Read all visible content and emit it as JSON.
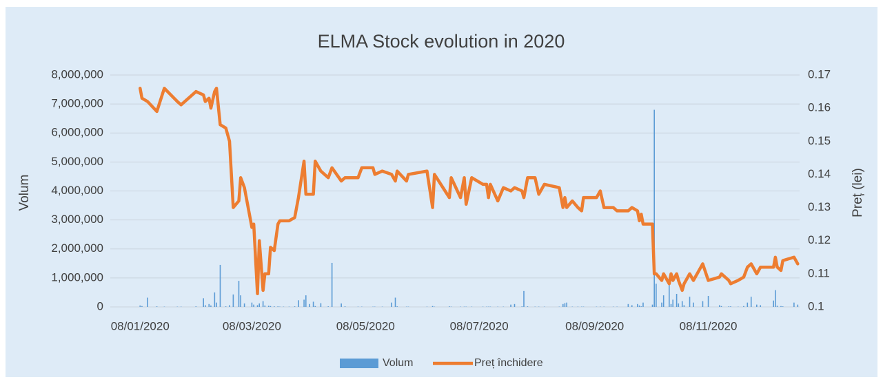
{
  "chart_data": {
    "type": "bar-line",
    "title": "ELMA Stock evolution in 2020",
    "y_label": "Volum",
    "y2_label": "Preț (lei)",
    "x": [
      "08/01/2020",
      "09/01/2020",
      "12/01/2020",
      "17/01/2020",
      "21/01/2020",
      "28/01/2020",
      "30/01/2020",
      "07/02/2020",
      "11/02/2020",
      "12/02/2020",
      "14/02/2020",
      "15/02/2020",
      "17/02/2020",
      "18/02/2020",
      "20/02/2020",
      "23/02/2020",
      "25/02/2020",
      "27/02/2020",
      "01/03/2020",
      "02/03/2020",
      "04/03/2020",
      "08/03/2020",
      "09/03/2020",
      "11/03/2020",
      "12/03/2020",
      "14/03/2020",
      "15/03/2020",
      "17/03/2020",
      "18/03/2020",
      "20/03/2020",
      "22/03/2020",
      "23/03/2020",
      "25/03/2020",
      "28/03/2020",
      "31/03/2020",
      "02/04/2020",
      "05/04/2020",
      "06/04/2020",
      "08/04/2020",
      "10/04/2020",
      "11/04/2020",
      "14/04/2020",
      "18/04/2020",
      "20/04/2020",
      "25/04/2020",
      "27/04/2020",
      "04/05/2020",
      "06/05/2020",
      "12/05/2020",
      "13/05/2020",
      "17/05/2020",
      "22/05/2020",
      "24/05/2020",
      "25/05/2020",
      "30/05/2020",
      "31/05/2020",
      "10/06/2020",
      "13/06/2020",
      "14/06/2020",
      "22/06/2020",
      "23/06/2020",
      "28/06/2020",
      "30/06/2020",
      "01/07/2020",
      "04/07/2020",
      "10/07/2020",
      "12/07/2020",
      "13/07/2020",
      "14/07/2020",
      "18/07/2020",
      "21/07/2020",
      "25/07/2020",
      "27/07/2020",
      "31/07/2020",
      "01/08/2020",
      "03/08/2020",
      "07/08/2020",
      "09/08/2020",
      "12/08/2020",
      "20/08/2020",
      "22/08/2020",
      "23/08/2020",
      "24/08/2020",
      "27/08/2020",
      "30/08/2020",
      "01/09/2020",
      "02/09/2020",
      "09/09/2020",
      "11/09/2020",
      "13/09/2020",
      "18/09/2020",
      "20/09/2020",
      "26/09/2020",
      "28/09/2020",
      "01/10/2020",
      "02/10/2020",
      "03/10/2020",
      "04/10/2020",
      "09/10/2020",
      "10/10/2020",
      "11/10/2020",
      "14/10/2020",
      "15/10/2020",
      "18/10/2020",
      "19/10/2020",
      "20/10/2020",
      "22/10/2020",
      "23/10/2020",
      "25/10/2020",
      "26/10/2020",
      "29/10/2020",
      "31/10/2020",
      "05/11/2020",
      "08/11/2020",
      "14/11/2020",
      "15/11/2020",
      "19/11/2020",
      "20/11/2020",
      "24/11/2020",
      "27/11/2020",
      "29/11/2020",
      "01/12/2020",
      "04/12/2020",
      "06/12/2020",
      "13/12/2020",
      "14/12/2020",
      "15/12/2020",
      "17/12/2020",
      "18/12/2020",
      "24/12/2020",
      "26/12/2020"
    ],
    "series": [
      {
        "name": "Volum",
        "type": "bar",
        "color": "#5b9bd5",
        "values": [
          50000,
          30000,
          320000,
          20000,
          10000,
          10000,
          10000,
          20000,
          300000,
          60000,
          100000,
          50000,
          500000,
          150000,
          1450000,
          20000,
          60000,
          430000,
          900000,
          400000,
          120000,
          150000,
          80000,
          60000,
          120000,
          200000,
          50000,
          40000,
          30000,
          20000,
          20000,
          10000,
          10000,
          10000,
          20000,
          230000,
          250000,
          400000,
          100000,
          180000,
          30000,
          130000,
          20000,
          1520000,
          120000,
          20000,
          10000,
          10000,
          10000,
          10000,
          10000,
          150000,
          320000,
          20000,
          10000,
          10000,
          10000,
          30000,
          10000,
          20000,
          10000,
          10000,
          10000,
          10000,
          10000,
          10000,
          10000,
          10000,
          10000,
          10000,
          10000,
          80000,
          100000,
          20000,
          550000,
          20000,
          10000,
          10000,
          10000,
          10000,
          100000,
          130000,
          150000,
          10000,
          10000,
          10000,
          10000,
          10000,
          10000,
          10000,
          10000,
          10000,
          100000,
          60000,
          100000,
          50000,
          20000,
          150000,
          80000,
          6800000,
          800000,
          150000,
          400000,
          850000,
          100000,
          250000,
          450000,
          120000,
          200000,
          60000,
          350000,
          150000,
          200000,
          380000,
          60000,
          30000,
          20000,
          20000,
          10000,
          30000,
          150000,
          350000,
          80000,
          60000,
          220000,
          580000,
          40000,
          30000,
          20000,
          150000,
          80000
        ]
      },
      {
        "name": "Preț închidere",
        "type": "line",
        "axis": "y2",
        "color": "#ed7d31",
        "values": [
          0.166,
          0.163,
          0.162,
          0.159,
          0.166,
          0.162,
          0.161,
          0.165,
          0.164,
          0.162,
          0.163,
          0.16,
          0.165,
          0.166,
          0.155,
          0.154,
          0.15,
          0.13,
          0.132,
          0.139,
          0.136,
          0.124,
          0.125,
          0.104,
          0.12,
          0.105,
          0.11,
          0.11,
          0.118,
          0.117,
          0.125,
          0.126,
          0.126,
          0.126,
          0.127,
          0.133,
          0.144,
          0.134,
          0.134,
          0.134,
          0.144,
          0.141,
          0.139,
          0.142,
          0.138,
          0.139,
          0.139,
          0.142,
          0.142,
          0.14,
          0.141,
          0.14,
          0.138,
          0.141,
          0.138,
          0.14,
          0.141,
          0.13,
          0.14,
          0.133,
          0.139,
          0.133,
          0.139,
          0.131,
          0.139,
          0.137,
          0.137,
          0.133,
          0.137,
          0.132,
          0.136,
          0.135,
          0.136,
          0.135,
          0.133,
          0.139,
          0.139,
          0.134,
          0.137,
          0.136,
          0.13,
          0.133,
          0.13,
          0.132,
          0.13,
          0.129,
          0.133,
          0.133,
          0.135,
          0.13,
          0.13,
          0.129,
          0.129,
          0.13,
          0.129,
          0.126,
          0.128,
          0.125,
          0.125,
          0.11,
          0.11,
          0.108,
          0.11,
          0.107,
          0.11,
          0.108,
          0.11,
          0.108,
          0.105,
          0.107,
          0.11,
          0.108,
          0.113,
          0.108,
          0.109,
          0.11,
          0.108,
          0.107,
          0.108,
          0.109,
          0.112,
          0.113,
          0.11,
          0.112,
          0.112,
          0.115,
          0.112,
          0.111,
          0.114,
          0.115,
          0.113
        ]
      }
    ],
    "xlim": [
      "23/12/2019",
      "27/12/2020"
    ],
    "xticks": [
      "08/01/2020",
      "08/03/2020",
      "08/05/2020",
      "08/07/2020",
      "08/09/2020",
      "08/11/2020"
    ],
    "ylim": [
      0,
      8000000
    ],
    "yticks": [
      0,
      {
        "value": 1000000,
        "label": "1,000,000"
      },
      {
        "value": 2000000,
        "label": "2,000,000"
      },
      {
        "value": 3000000,
        "label": "3,000,000"
      },
      {
        "value": 4000000,
        "label": "4,000,000"
      },
      {
        "value": 5000000,
        "label": "5,000,000"
      },
      {
        "value": 6000000,
        "label": "6,000,000"
      },
      {
        "value": 7000000,
        "label": "7,000,000"
      },
      {
        "value": 8000000,
        "label": "8,000,000"
      }
    ],
    "y2lim": [
      0.1,
      0.17
    ],
    "y2ticks": [
      0.1,
      0.11,
      0.12,
      0.13,
      0.14,
      0.15,
      0.16,
      0.17
    ],
    "grid": true,
    "legend": "bottom"
  }
}
